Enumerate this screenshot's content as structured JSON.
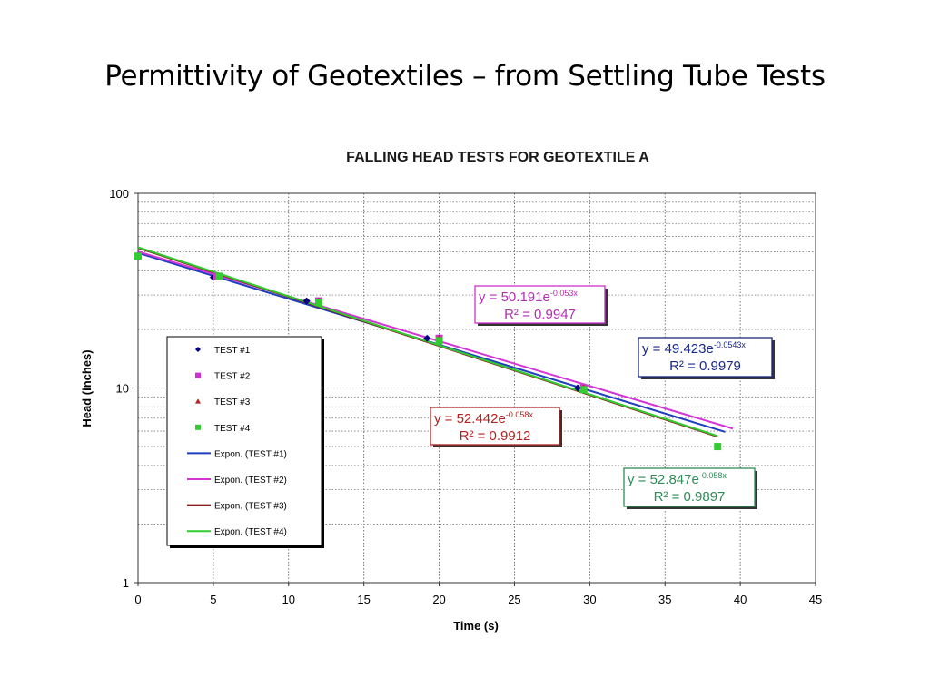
{
  "slide": {
    "title": "Permittivity of Geotextiles – from Settling Tube Tests"
  },
  "chart_data": {
    "type": "scatter",
    "title": "FALLING HEAD TESTS FOR GEOTEXTILE A",
    "xlabel": "Time (s)",
    "ylabel": "Head (inches)",
    "xlim": [
      0,
      45
    ],
    "ylim": [
      1,
      100
    ],
    "yscale": "log",
    "xticks": [
      "0",
      "5",
      "10",
      "15",
      "20",
      "25",
      "30",
      "35",
      "40",
      "45"
    ],
    "yticks": [
      "1",
      "10",
      "100"
    ],
    "grid": true,
    "legend_position": "left-middle",
    "series": [
      {
        "name": "TEST #1",
        "marker": "diamond",
        "color": "#000080",
        "points": [
          [
            0,
            48
          ],
          [
            5,
            37
          ],
          [
            11.2,
            28
          ],
          [
            19.2,
            18
          ],
          [
            29.2,
            10
          ]
        ]
      },
      {
        "name": "TEST #2",
        "marker": "square",
        "color": "#cc33cc",
        "points": [
          [
            0,
            47.5
          ],
          [
            5.2,
            37.5
          ],
          [
            12,
            28
          ],
          [
            20,
            18
          ],
          [
            29.6,
            10
          ]
        ]
      },
      {
        "name": "TEST #3",
        "marker": "triangle",
        "color": "#b22222",
        "points": [
          [
            0,
            48
          ],
          [
            5.4,
            37.5
          ],
          [
            12,
            28
          ],
          [
            20,
            18
          ],
          [
            29.6,
            10
          ],
          [
            38.5,
            5
          ]
        ]
      },
      {
        "name": "TEST #4",
        "marker": "square",
        "color": "#33cc33",
        "points": [
          [
            0,
            47.5
          ],
          [
            5.4,
            37.5
          ],
          [
            12,
            27.5
          ],
          [
            20,
            17.5
          ],
          [
            29.6,
            9.8
          ],
          [
            38.5,
            5
          ]
        ]
      }
    ],
    "trendlines": [
      {
        "name": "Expon. (TEST #1)",
        "color": "#1f3fbf",
        "a": 49.423,
        "b": -0.0543,
        "x_range": [
          0,
          39
        ],
        "equation": "y = 49.423e",
        "exponent": "-0.0543x",
        "r2": "R² = 0.9979"
      },
      {
        "name": "Expon. (TEST #2)",
        "color": "#d633d6",
        "a": 50.191,
        "b": -0.053,
        "x_range": [
          0,
          39.5
        ],
        "equation": "y = 50.191e",
        "exponent": "-0.053x",
        "r2": "R² = 0.9947"
      },
      {
        "name": "Expon. (TEST #3)",
        "color": "#8b1a1a",
        "a": 52.442,
        "b": -0.058,
        "x_range": [
          0,
          38.5
        ],
        "equation": "y = 52.442e",
        "exponent": "-0.058x",
        "r2": "R² = 0.9912"
      },
      {
        "name": "Expon. (TEST #4)",
        "color": "#2ecc2e",
        "a": 52.847,
        "b": -0.058,
        "x_range": [
          0,
          38.5
        ],
        "equation": "y = 52.847e",
        "exponent": "-0.058x",
        "r2": "R² = 0.9897"
      }
    ],
    "annotation_colors": {
      "box_border_1": "#1a2a7a",
      "box_border_2": "#cc33cc",
      "box_border_3": "#b22222",
      "box_border_4": "#2e8b57",
      "text_1": "#1a2a8a",
      "text_2": "#b030b0",
      "text_3": "#b22222",
      "text_4": "#2e8b57"
    }
  }
}
